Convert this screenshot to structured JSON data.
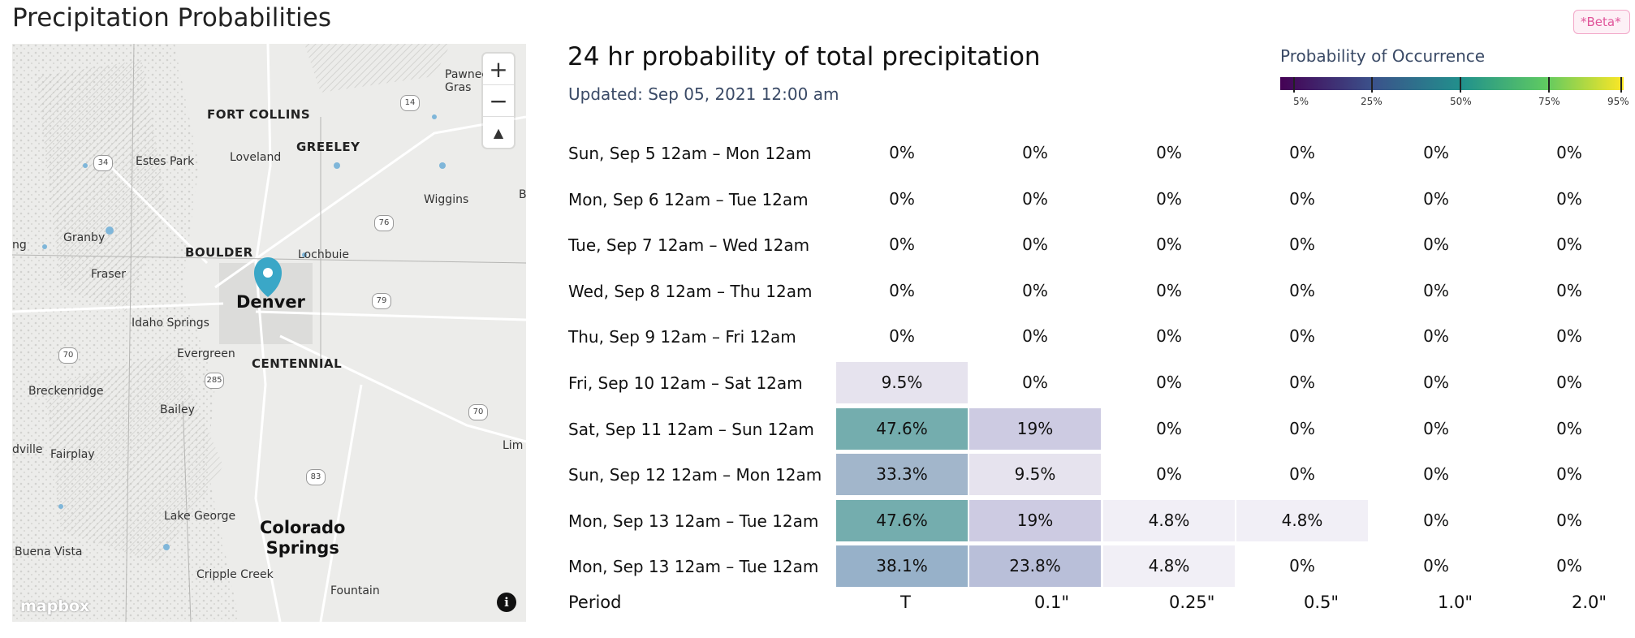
{
  "page_title": "Precipitation Probabilities",
  "beta_badge": "*Beta*",
  "map": {
    "zoom_in": "+",
    "zoom_out": "−",
    "compass": "▲",
    "logo": "mapbox",
    "info": "i",
    "labels": {
      "fort_collins": "FORT COLLINS",
      "greeley": "GREELEY",
      "loveland": "Loveland",
      "estes_park": "Estes Park",
      "wiggins": "Wiggins",
      "granby": "Granby",
      "boulder": "BOULDER",
      "lochbuie": "Lochbuie",
      "fraser": "Fraser",
      "denver": "Denver",
      "idaho_springs": "Idaho Springs",
      "evergreen": "Evergreen",
      "centennial": "CENTENNIAL",
      "breckenridge": "Breckenridge",
      "bailey": "Bailey",
      "fairplay": "Fairplay",
      "lake_george": "Lake George",
      "colorado_springs": "Colorado\nSprings",
      "buena_vista": "Buena Vista",
      "cripple_creek": "Cripple Creek",
      "fountain": "Fountain",
      "pawnee": "Pawnee\nGras",
      "lim": "Lim",
      "b": "B",
      "ng": "ng",
      "dville": "dville"
    },
    "shields": [
      "14",
      "34",
      "76",
      "79",
      "70",
      "285",
      "70",
      "83"
    ]
  },
  "panel": {
    "heading": "24 hr probability of total precipitation",
    "updated": "Updated: Sep 05, 2021 12:00 am"
  },
  "legend": {
    "title": "Probability of Occurrence",
    "ticks": [
      "5%",
      "25%",
      "50%",
      "75%",
      "95%"
    ]
  },
  "colors": {
    "c_9_5": "#e6e3ee",
    "c_19": "#cdcbe2",
    "c_23_8": "#b9bfd9",
    "c_33_3": "#a2b6cb",
    "c_38_1": "#97b1c9",
    "c_47_6": "#74adae",
    "c_4_8": "#f1eff6"
  },
  "table": {
    "column_thresholds": [
      "T",
      "0.1\"",
      "0.25\"",
      "0.5\"",
      "1.0\"",
      "2.0\""
    ],
    "period_label": "Period",
    "rows": [
      {
        "period": "Sun, Sep 5 12am – Mon 12am",
        "values": [
          "0%",
          "0%",
          "0%",
          "0%",
          "0%",
          "0%"
        ]
      },
      {
        "period": "Mon, Sep 6 12am – Tue 12am",
        "values": [
          "0%",
          "0%",
          "0%",
          "0%",
          "0%",
          "0%"
        ]
      },
      {
        "period": "Tue, Sep 7 12am – Wed 12am",
        "values": [
          "0%",
          "0%",
          "0%",
          "0%",
          "0%",
          "0%"
        ]
      },
      {
        "period": "Wed, Sep 8 12am – Thu 12am",
        "values": [
          "0%",
          "0%",
          "0%",
          "0%",
          "0%",
          "0%"
        ]
      },
      {
        "period": "Thu, Sep 9 12am – Fri 12am",
        "values": [
          "0%",
          "0%",
          "0%",
          "0%",
          "0%",
          "0%"
        ]
      },
      {
        "period": "Fri, Sep 10 12am – Sat 12am",
        "values": [
          "9.5%",
          "0%",
          "0%",
          "0%",
          "0%",
          "0%"
        ]
      },
      {
        "period": "Sat, Sep 11 12am – Sun 12am",
        "values": [
          "47.6%",
          "19%",
          "0%",
          "0%",
          "0%",
          "0%"
        ]
      },
      {
        "period": "Sun, Sep 12 12am – Mon 12am",
        "values": [
          "33.3%",
          "9.5%",
          "0%",
          "0%",
          "0%",
          "0%"
        ]
      },
      {
        "period": "Mon, Sep 13 12am – Tue 12am",
        "values": [
          "47.6%",
          "19%",
          "4.8%",
          "4.8%",
          "0%",
          "0%"
        ]
      },
      {
        "period": "Mon, Sep 13 12am – Tue 12am",
        "values": [
          "38.1%",
          "23.8%",
          "4.8%",
          "0%",
          "0%",
          "0%"
        ]
      }
    ]
  }
}
